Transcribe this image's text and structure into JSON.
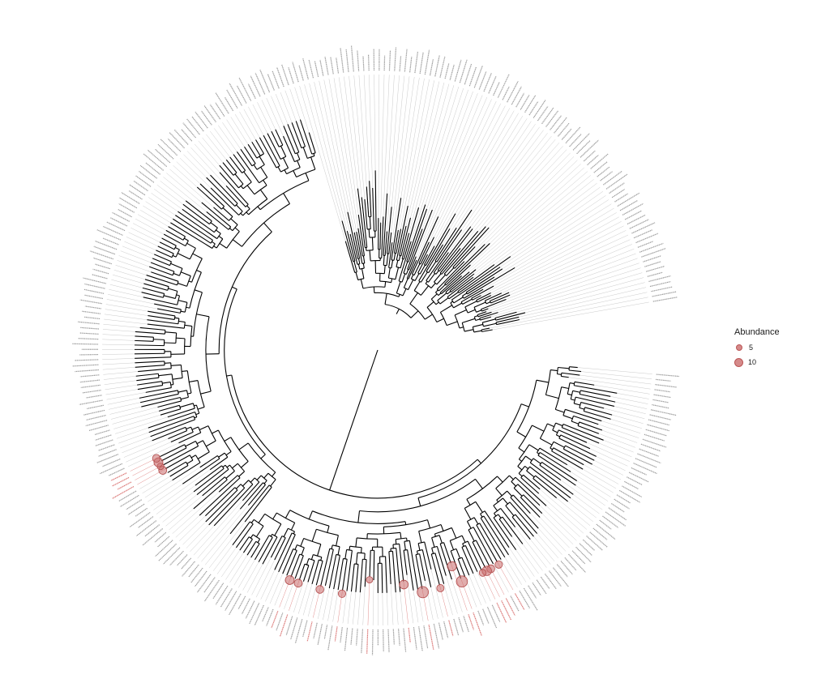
{
  "diagram": {
    "type": "circular-phylogenetic-tree",
    "colors": {
      "branch": "#000000",
      "tip_line": "#bdbdbd",
      "tip_label": "#9a9a9a",
      "highlight": "#d9706f",
      "point_fill": "#c96a6a"
    }
  },
  "legend": {
    "title": "Abundance",
    "items": [
      {
        "label": "5",
        "value": 5
      },
      {
        "label": "10",
        "value": 10
      }
    ]
  }
}
